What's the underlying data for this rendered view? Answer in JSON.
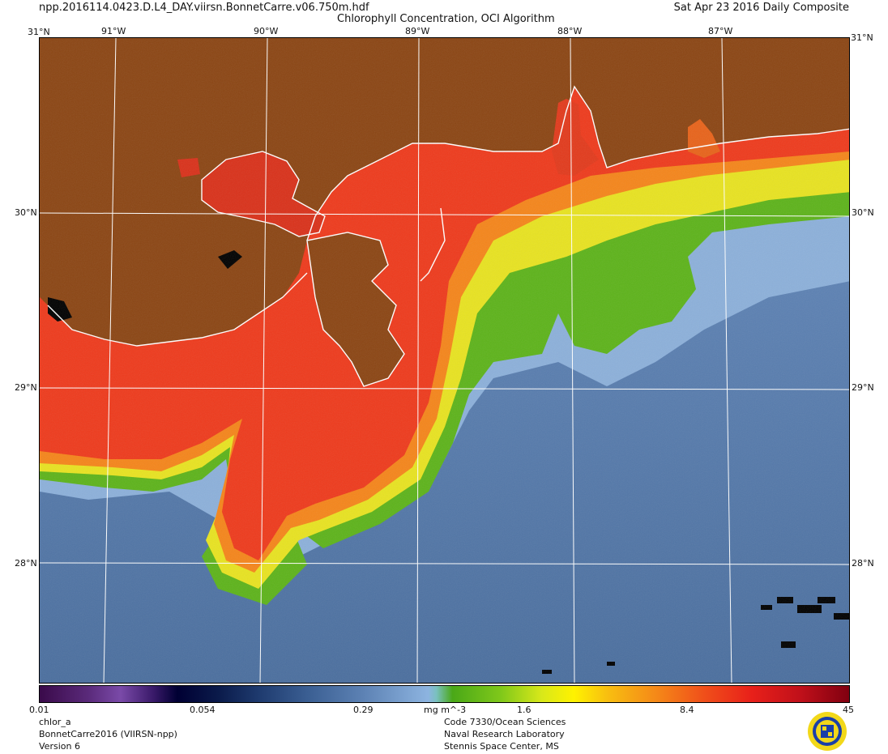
{
  "header": {
    "filename": "npp.2016114.0423.D.L4_DAY.viirsn.BonnetCarre.v06.750m.hdf",
    "product_title": "Chlorophyll Concentration, OCI Algorithm",
    "date_label": "Sat Apr 23 2016 Daily Composite"
  },
  "axes": {
    "longitudes": [
      "91°W",
      "90°W",
      "89°W",
      "88°W",
      "87°W"
    ],
    "latitudes": [
      "31°N",
      "30°N",
      "29°N",
      "28°N"
    ],
    "corner_top_left": "31°N",
    "corner_bottom_left": "",
    "corner_top_right": "31°N",
    "corner_bottom_right": ""
  },
  "colorbar": {
    "tick_labels": [
      "0.01",
      "0.054",
      "0.29",
      "mg m^-3",
      "1.6",
      "8.4",
      "45"
    ]
  },
  "footer": {
    "left": [
      "chlor_a",
      "BonnetCarre2016 (VIIRSN-npp)",
      "Version 6"
    ],
    "center": [
      "Code 7330/Ocean Sciences",
      "Naval Research Laboratory",
      "Stennis Space Center, MS"
    ]
  },
  "colors": {
    "land": "#8b4513",
    "ocean_deep": "#4a6e9e",
    "ocean_light": "#8fb0d8",
    "plume_green": "#5db31a",
    "plume_yellow": "#f2e51a",
    "plume_orange": "#f57a12",
    "plume_red": "#f0331a",
    "coast": "#ffffff",
    "grid": "#ffffff"
  },
  "logo": {
    "name": "nrl-seal-logo"
  }
}
